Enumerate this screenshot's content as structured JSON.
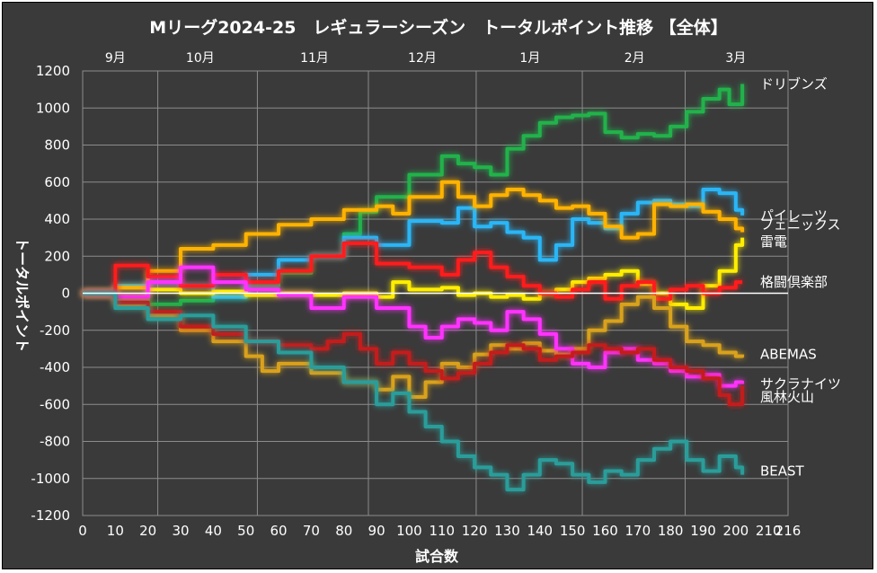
{
  "chart_data": {
    "type": "line",
    "title": "Mリーグ2024-25　レギュラーシーズン　トータルポイント推移 【全体】",
    "xlabel": "試合数",
    "ylabel": "トータルポイント",
    "xlim": [
      0,
      216
    ],
    "ylim": [
      -1200,
      1200
    ],
    "x_ticks": [
      "0",
      "10",
      "20",
      "30",
      "40",
      "50",
      "60",
      "70",
      "80",
      "90",
      "100",
      "110",
      "120",
      "130",
      "140",
      "150",
      "160",
      "170",
      "180",
      "190",
      "200",
      "210",
      "216"
    ],
    "y_ticks": [
      "1200",
      "1000",
      "800",
      "600",
      "400",
      "200",
      "0",
      "-200",
      "-400",
      "-600",
      "-800",
      "-1000",
      "-1200"
    ],
    "month_ticks": [
      {
        "label": "9月",
        "x": 10
      },
      {
        "label": "10月",
        "x": 36
      },
      {
        "label": "11月",
        "x": 71
      },
      {
        "label": "12月",
        "x": 104
      },
      {
        "label": "1月",
        "x": 137
      },
      {
        "label": "2月",
        "x": 169
      },
      {
        "label": "3月",
        "x": 200
      }
    ],
    "grid": true,
    "series": [
      {
        "name": "ドリブンズ",
        "color": "#21b24b",
        "label_y": 1130,
        "points": [
          [
            0,
            0
          ],
          [
            10,
            -30
          ],
          [
            20,
            -60
          ],
          [
            30,
            -40
          ],
          [
            40,
            -20
          ],
          [
            50,
            40
          ],
          [
            60,
            110
          ],
          [
            70,
            200
          ],
          [
            80,
            320
          ],
          [
            85,
            440
          ],
          [
            90,
            520
          ],
          [
            100,
            640
          ],
          [
            110,
            740
          ],
          [
            115,
            700
          ],
          [
            120,
            680
          ],
          [
            125,
            640
          ],
          [
            130,
            780
          ],
          [
            135,
            850
          ],
          [
            140,
            920
          ],
          [
            145,
            950
          ],
          [
            150,
            960
          ],
          [
            155,
            970
          ],
          [
            160,
            870
          ],
          [
            165,
            840
          ],
          [
            170,
            860
          ],
          [
            175,
            850
          ],
          [
            180,
            900
          ],
          [
            185,
            980
          ],
          [
            190,
            1050
          ],
          [
            195,
            1100
          ],
          [
            198,
            1020
          ],
          [
            202,
            1130
          ]
        ]
      },
      {
        "name": "パイレーツ",
        "color": "#29b6f6",
        "label_y": 420,
        "points": [
          [
            0,
            0
          ],
          [
            10,
            40
          ],
          [
            20,
            60
          ],
          [
            30,
            40
          ],
          [
            40,
            -20
          ],
          [
            50,
            100
          ],
          [
            60,
            180
          ],
          [
            70,
            200
          ],
          [
            80,
            300
          ],
          [
            90,
            260
          ],
          [
            100,
            390
          ],
          [
            110,
            380
          ],
          [
            115,
            460
          ],
          [
            120,
            360
          ],
          [
            125,
            380
          ],
          [
            130,
            330
          ],
          [
            135,
            300
          ],
          [
            140,
            180
          ],
          [
            145,
            260
          ],
          [
            150,
            400
          ],
          [
            155,
            380
          ],
          [
            160,
            350
          ],
          [
            165,
            430
          ],
          [
            170,
            490
          ],
          [
            175,
            500
          ],
          [
            180,
            480
          ],
          [
            185,
            470
          ],
          [
            190,
            560
          ],
          [
            195,
            540
          ],
          [
            200,
            450
          ],
          [
            202,
            420
          ]
        ]
      },
      {
        "name": "フェニックス",
        "color": "#ffb300",
        "label_y": 370,
        "points": [
          [
            0,
            0
          ],
          [
            10,
            30
          ],
          [
            20,
            120
          ],
          [
            30,
            240
          ],
          [
            40,
            260
          ],
          [
            50,
            320
          ],
          [
            60,
            370
          ],
          [
            70,
            400
          ],
          [
            80,
            450
          ],
          [
            90,
            470
          ],
          [
            95,
            430
          ],
          [
            100,
            520
          ],
          [
            110,
            600
          ],
          [
            115,
            520
          ],
          [
            120,
            470
          ],
          [
            125,
            530
          ],
          [
            130,
            560
          ],
          [
            135,
            530
          ],
          [
            140,
            500
          ],
          [
            145,
            460
          ],
          [
            150,
            470
          ],
          [
            155,
            430
          ],
          [
            160,
            360
          ],
          [
            165,
            300
          ],
          [
            170,
            320
          ],
          [
            175,
            480
          ],
          [
            180,
            470
          ],
          [
            185,
            480
          ],
          [
            190,
            440
          ],
          [
            195,
            400
          ],
          [
            200,
            350
          ],
          [
            202,
            330
          ]
        ]
      },
      {
        "name": "雷電",
        "color": "#ffee00",
        "label_y": 280,
        "points": [
          [
            0,
            0
          ],
          [
            10,
            -20
          ],
          [
            20,
            20
          ],
          [
            30,
            0
          ],
          [
            40,
            10
          ],
          [
            50,
            -10
          ],
          [
            60,
            0
          ],
          [
            70,
            -10
          ],
          [
            80,
            0
          ],
          [
            90,
            -20
          ],
          [
            95,
            60
          ],
          [
            100,
            20
          ],
          [
            110,
            30
          ],
          [
            115,
            -10
          ],
          [
            120,
            0
          ],
          [
            125,
            -20
          ],
          [
            130,
            -10
          ],
          [
            135,
            -30
          ],
          [
            140,
            0
          ],
          [
            145,
            20
          ],
          [
            150,
            60
          ],
          [
            155,
            80
          ],
          [
            160,
            100
          ],
          [
            165,
            120
          ],
          [
            170,
            50
          ],
          [
            175,
            0
          ],
          [
            180,
            -60
          ],
          [
            185,
            -80
          ],
          [
            190,
            40
          ],
          [
            195,
            120
          ],
          [
            200,
            260
          ],
          [
            202,
            300
          ]
        ]
      },
      {
        "name": "格闘倶楽部",
        "color": "#ff1a1a",
        "label_y": 60,
        "points": [
          [
            0,
            0
          ],
          [
            10,
            150
          ],
          [
            20,
            90
          ],
          [
            30,
            40
          ],
          [
            40,
            100
          ],
          [
            50,
            60
          ],
          [
            60,
            120
          ],
          [
            70,
            200
          ],
          [
            80,
            270
          ],
          [
            90,
            160
          ],
          [
            100,
            140
          ],
          [
            110,
            100
          ],
          [
            115,
            180
          ],
          [
            120,
            220
          ],
          [
            125,
            140
          ],
          [
            130,
            90
          ],
          [
            135,
            40
          ],
          [
            140,
            0
          ],
          [
            145,
            -20
          ],
          [
            150,
            20
          ],
          [
            155,
            60
          ],
          [
            160,
            -30
          ],
          [
            165,
            40
          ],
          [
            170,
            60
          ],
          [
            175,
            -30
          ],
          [
            180,
            20
          ],
          [
            185,
            40
          ],
          [
            190,
            0
          ],
          [
            195,
            30
          ],
          [
            200,
            60
          ],
          [
            202,
            60
          ]
        ]
      },
      {
        "name": "ABEMAS",
        "color": "#d9a21c",
        "label_y": -330,
        "points": [
          [
            0,
            0
          ],
          [
            10,
            -60
          ],
          [
            20,
            -120
          ],
          [
            30,
            -200
          ],
          [
            40,
            -260
          ],
          [
            50,
            -340
          ],
          [
            55,
            -420
          ],
          [
            60,
            -380
          ],
          [
            70,
            -430
          ],
          [
            80,
            -480
          ],
          [
            90,
            -520
          ],
          [
            95,
            -450
          ],
          [
            100,
            -560
          ],
          [
            105,
            -480
          ],
          [
            110,
            -380
          ],
          [
            115,
            -400
          ],
          [
            120,
            -330
          ],
          [
            125,
            -280
          ],
          [
            130,
            -300
          ],
          [
            135,
            -270
          ],
          [
            140,
            -310
          ],
          [
            145,
            -330
          ],
          [
            150,
            -300
          ],
          [
            155,
            -200
          ],
          [
            160,
            -150
          ],
          [
            165,
            -60
          ],
          [
            170,
            -20
          ],
          [
            175,
            -80
          ],
          [
            180,
            -180
          ],
          [
            185,
            -260
          ],
          [
            190,
            -280
          ],
          [
            195,
            -320
          ],
          [
            200,
            -340
          ],
          [
            202,
            -330
          ]
        ]
      },
      {
        "name": "サクラナイツ",
        "color": "#ff33ff",
        "label_y": -490,
        "points": [
          [
            0,
            0
          ],
          [
            10,
            -20
          ],
          [
            20,
            60
          ],
          [
            30,
            140
          ],
          [
            40,
            60
          ],
          [
            50,
            20
          ],
          [
            60,
            -10
          ],
          [
            70,
            -80
          ],
          [
            80,
            -20
          ],
          [
            90,
            -80
          ],
          [
            100,
            -180
          ],
          [
            105,
            -240
          ],
          [
            110,
            -180
          ],
          [
            115,
            -140
          ],
          [
            120,
            -160
          ],
          [
            125,
            -200
          ],
          [
            130,
            -100
          ],
          [
            135,
            -140
          ],
          [
            140,
            -220
          ],
          [
            145,
            -300
          ],
          [
            150,
            -380
          ],
          [
            155,
            -400
          ],
          [
            160,
            -320
          ],
          [
            165,
            -300
          ],
          [
            170,
            -360
          ],
          [
            175,
            -380
          ],
          [
            180,
            -420
          ],
          [
            185,
            -450
          ],
          [
            190,
            -440
          ],
          [
            195,
            -500
          ],
          [
            200,
            -480
          ],
          [
            202,
            -490
          ]
        ]
      },
      {
        "name": "風林火山",
        "color": "#c41e1e",
        "label_y": -560,
        "points": [
          [
            0,
            0
          ],
          [
            10,
            -50
          ],
          [
            20,
            -100
          ],
          [
            30,
            -180
          ],
          [
            40,
            -220
          ],
          [
            50,
            -260
          ],
          [
            60,
            -280
          ],
          [
            70,
            -300
          ],
          [
            75,
            -260
          ],
          [
            80,
            -220
          ],
          [
            85,
            -300
          ],
          [
            90,
            -380
          ],
          [
            95,
            -320
          ],
          [
            100,
            -380
          ],
          [
            105,
            -420
          ],
          [
            110,
            -460
          ],
          [
            115,
            -430
          ],
          [
            120,
            -380
          ],
          [
            125,
            -320
          ],
          [
            130,
            -280
          ],
          [
            135,
            -300
          ],
          [
            140,
            -360
          ],
          [
            145,
            -340
          ],
          [
            150,
            -320
          ],
          [
            155,
            -280
          ],
          [
            160,
            -300
          ],
          [
            165,
            -320
          ],
          [
            170,
            -300
          ],
          [
            175,
            -360
          ],
          [
            180,
            -400
          ],
          [
            185,
            -420
          ],
          [
            190,
            -460
          ],
          [
            195,
            -550
          ],
          [
            198,
            -600
          ],
          [
            202,
            -500
          ]
        ]
      },
      {
        "name": "BEAST",
        "color": "#2a9d9a",
        "label_y": -960,
        "points": [
          [
            0,
            0
          ],
          [
            10,
            -80
          ],
          [
            20,
            -140
          ],
          [
            30,
            -120
          ],
          [
            40,
            -180
          ],
          [
            50,
            -260
          ],
          [
            60,
            -320
          ],
          [
            70,
            -400
          ],
          [
            80,
            -480
          ],
          [
            90,
            -600
          ],
          [
            95,
            -540
          ],
          [
            100,
            -640
          ],
          [
            105,
            -720
          ],
          [
            110,
            -800
          ],
          [
            115,
            -880
          ],
          [
            120,
            -940
          ],
          [
            125,
            -980
          ],
          [
            130,
            -1060
          ],
          [
            135,
            -980
          ],
          [
            140,
            -900
          ],
          [
            145,
            -920
          ],
          [
            150,
            -980
          ],
          [
            155,
            -1020
          ],
          [
            160,
            -960
          ],
          [
            165,
            -980
          ],
          [
            170,
            -900
          ],
          [
            175,
            -840
          ],
          [
            180,
            -800
          ],
          [
            185,
            -900
          ],
          [
            190,
            -960
          ],
          [
            195,
            -880
          ],
          [
            200,
            -940
          ],
          [
            202,
            -980
          ]
        ]
      }
    ]
  }
}
